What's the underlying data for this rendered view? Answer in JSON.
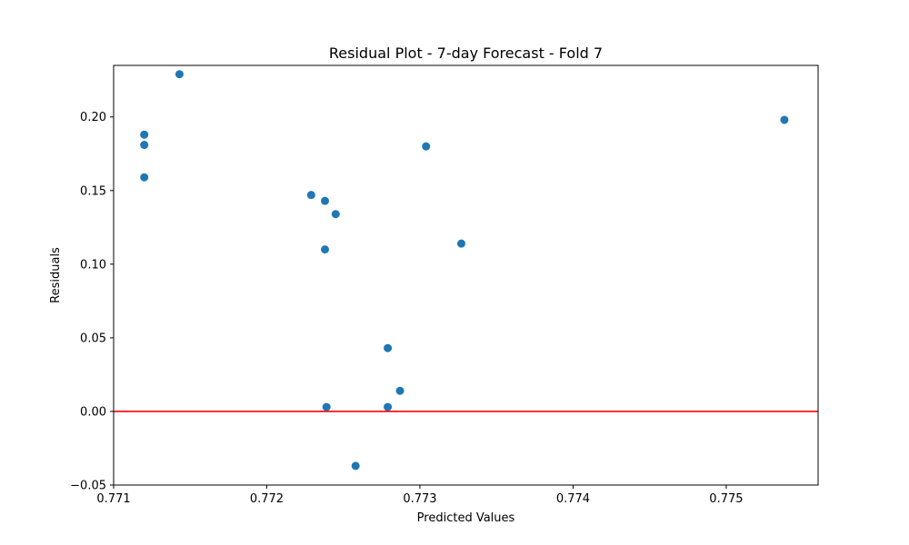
{
  "chart_data": {
    "type": "scatter",
    "title": "Residual Plot - 7-day Forecast - Fold 7",
    "xlabel": "Predicted Values",
    "ylabel": "Residuals",
    "xlim": [
      0.771,
      0.7756
    ],
    "ylim": [
      -0.05,
      0.235
    ],
    "xticks": [
      0.771,
      0.772,
      0.773,
      0.774,
      0.775
    ],
    "xtick_labels": [
      "0.771",
      "0.772",
      "0.773",
      "0.774",
      "0.775"
    ],
    "yticks": [
      -0.05,
      0.0,
      0.05,
      0.1,
      0.15,
      0.2
    ],
    "ytick_labels": [
      "−0.05",
      "0.00",
      "0.05",
      "0.10",
      "0.15",
      "0.20"
    ],
    "grid": false,
    "reference_line": {
      "y": 0.0,
      "color": "#ff0000"
    },
    "marker_color": "#1f77b4",
    "points": [
      {
        "x": 0.77143,
        "y": 0.229
      },
      {
        "x": 0.7712,
        "y": 0.188
      },
      {
        "x": 0.7712,
        "y": 0.181
      },
      {
        "x": 0.7712,
        "y": 0.159
      },
      {
        "x": 0.77229,
        "y": 0.147
      },
      {
        "x": 0.77238,
        "y": 0.143
      },
      {
        "x": 0.77245,
        "y": 0.134
      },
      {
        "x": 0.77238,
        "y": 0.11
      },
      {
        "x": 0.77304,
        "y": 0.18
      },
      {
        "x": 0.77327,
        "y": 0.114
      },
      {
        "x": 0.77279,
        "y": 0.043
      },
      {
        "x": 0.77287,
        "y": 0.014
      },
      {
        "x": 0.77239,
        "y": 0.003
      },
      {
        "x": 0.77279,
        "y": 0.003
      },
      {
        "x": 0.77258,
        "y": -0.037
      },
      {
        "x": 0.77538,
        "y": 0.198
      }
    ]
  }
}
